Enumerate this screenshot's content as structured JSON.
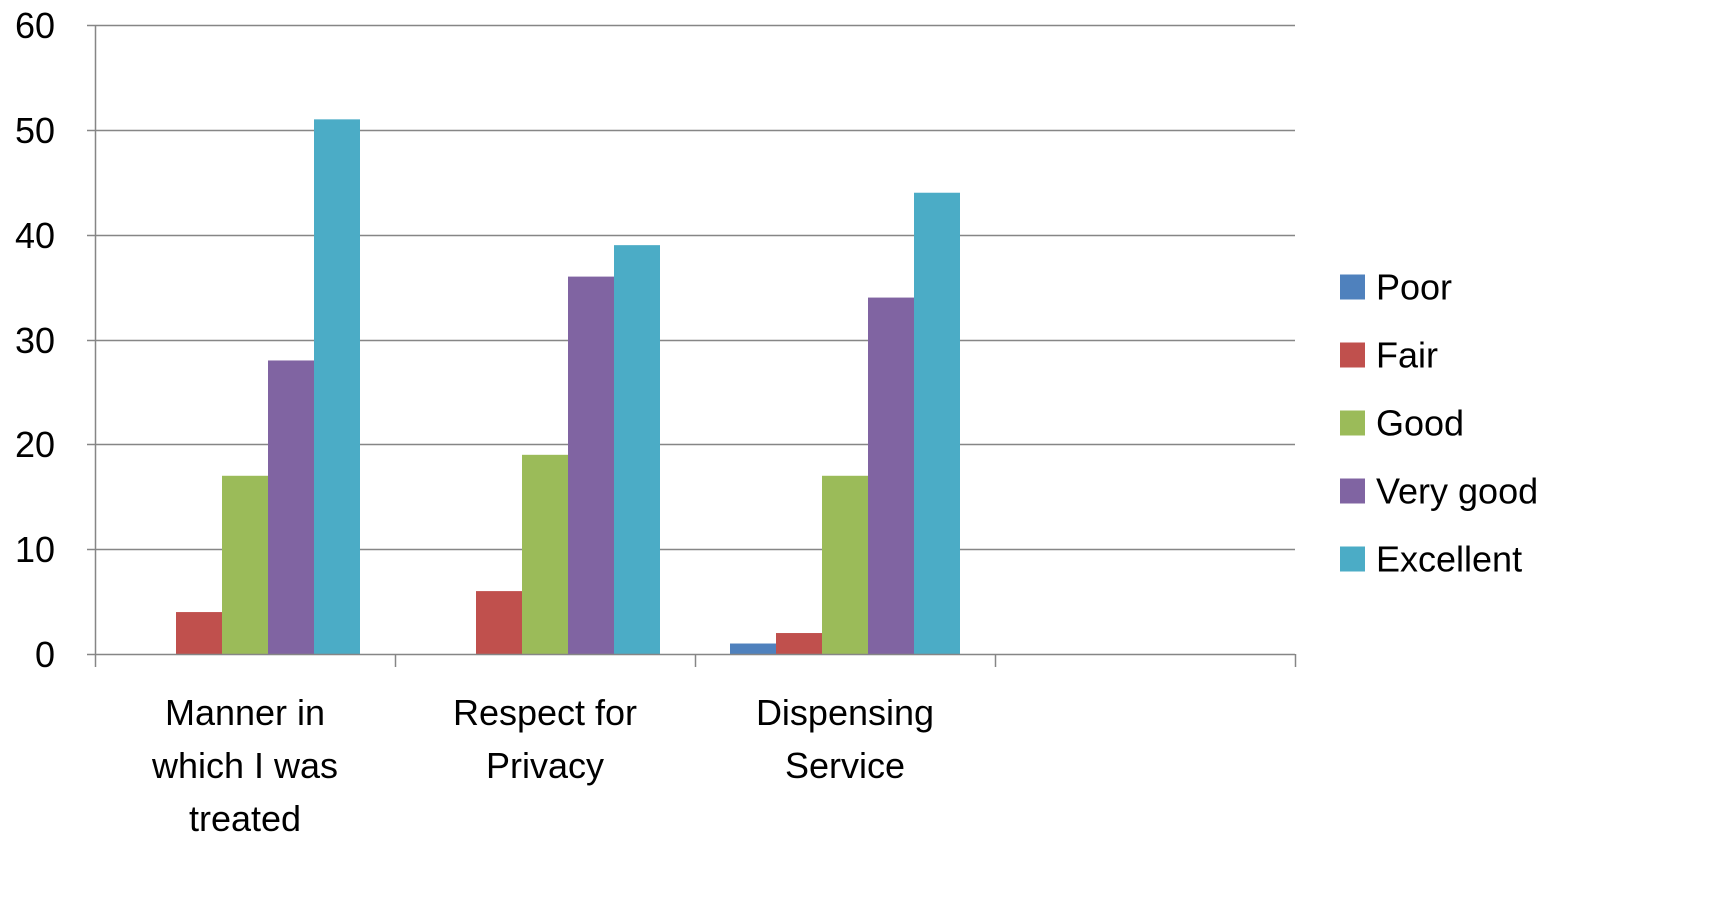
{
  "chart_data": {
    "type": "bar",
    "categories": [
      [
        "Manner in",
        "which I was",
        "treated"
      ],
      [
        "Respect for",
        "Privacy"
      ],
      [
        "Dispensing",
        "Service"
      ],
      [
        ""
      ]
    ],
    "series": [
      {
        "name": "Poor",
        "color": "#4F81BD",
        "values": [
          0,
          0,
          1,
          0
        ]
      },
      {
        "name": "Fair",
        "color": "#C0504D",
        "values": [
          4,
          6,
          2,
          0
        ]
      },
      {
        "name": "Good",
        "color": "#9BBB59",
        "values": [
          17,
          19,
          17,
          0
        ]
      },
      {
        "name": "Very good",
        "color": "#8064A2",
        "values": [
          28,
          36,
          34,
          0
        ]
      },
      {
        "name": "Excellent",
        "color": "#4BACC6",
        "values": [
          51,
          39,
          44,
          0
        ]
      }
    ],
    "y_ticks": [
      "0",
      "10",
      "20",
      "30",
      "40",
      "50",
      "60"
    ],
    "ylim": [
      0,
      60
    ],
    "grid": true,
    "legend_position": "right",
    "title": "",
    "xlabel": "",
    "ylabel": ""
  }
}
